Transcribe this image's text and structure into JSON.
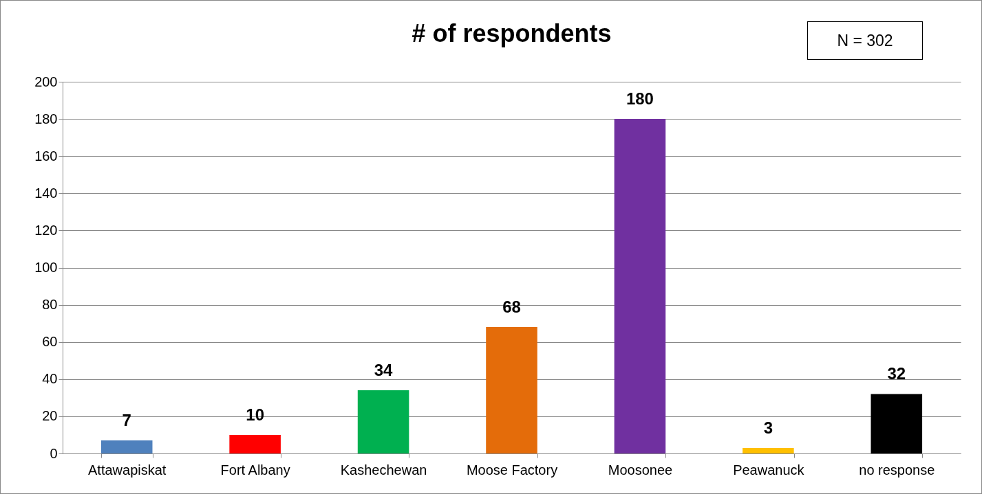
{
  "chart_data": {
    "type": "bar",
    "title": "# of respondents",
    "categories": [
      "Attawapiskat",
      "Fort Albany",
      "Kashechewan",
      "Moose Factory",
      "Moosonee",
      "Peawanuck",
      "no response"
    ],
    "values": [
      7,
      10,
      34,
      68,
      180,
      3,
      32
    ],
    "colors": [
      "#4f81bd",
      "#ff0000",
      "#00b050",
      "#e46c0a",
      "#7030a0",
      "#ffc000",
      "#000000"
    ],
    "ylim": [
      0,
      200
    ],
    "yticks": [
      0,
      20,
      40,
      60,
      80,
      100,
      120,
      140,
      160,
      180,
      200
    ],
    "grid": "y",
    "legend": false,
    "data_labels": true,
    "annotations": [
      "N = 302"
    ]
  }
}
